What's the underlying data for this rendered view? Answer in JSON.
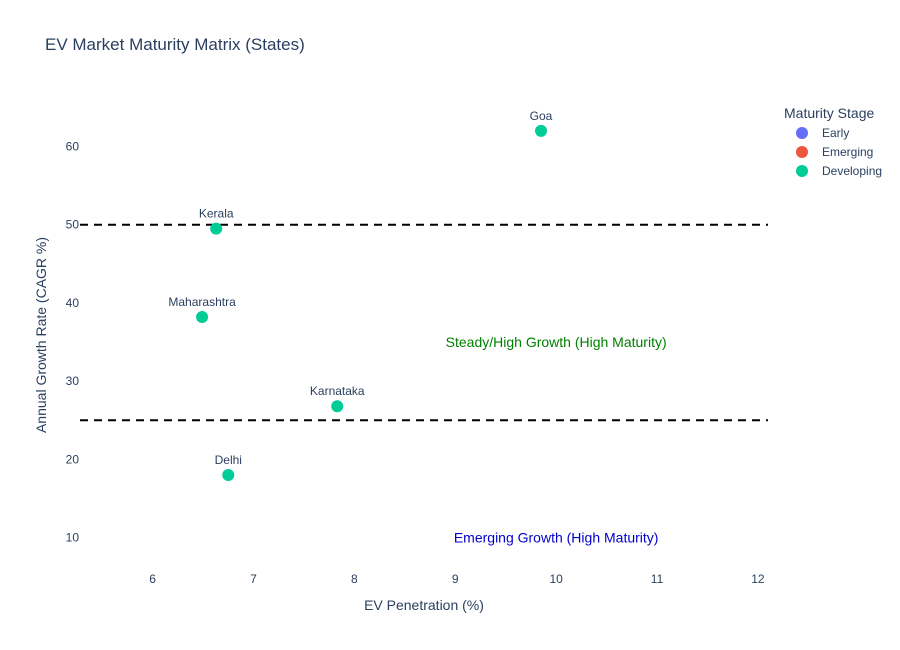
{
  "chart_data": {
    "type": "scatter",
    "title": "EV Market Maturity Matrix (States)",
    "xlabel": "EV Penetration (%)",
    "ylabel": "Annual Growth Rate (CAGR %)",
    "xlim": [
      5.28,
      12.1
    ],
    "ylim": [
      6.5,
      68.5
    ],
    "xticks": [
      "6",
      "7",
      "8",
      "9",
      "10",
      "11",
      "12"
    ],
    "yticks": [
      "10",
      "20",
      "30",
      "40",
      "50",
      "60"
    ],
    "grid": false,
    "legend": {
      "title": "Maturity Stage",
      "placement": "top-right",
      "entries": [
        {
          "label": "Early",
          "color": "#636efa"
        },
        {
          "label": "Emerging",
          "color": "#ef553b"
        },
        {
          "label": "Developing",
          "color": "#00cc96"
        }
      ]
    },
    "series": [
      {
        "name": "Developing",
        "color": "#00cc96",
        "points": [
          {
            "label": "Goa",
            "x": 9.85,
            "y": 62.0
          },
          {
            "label": "Kerala",
            "x": 6.63,
            "y": 49.5
          },
          {
            "label": "Maharashtra",
            "x": 6.49,
            "y": 38.2
          },
          {
            "label": "Karnataka",
            "x": 7.83,
            "y": 26.8
          },
          {
            "label": "Delhi",
            "x": 6.75,
            "y": 18.0
          }
        ]
      }
    ],
    "reference_lines": [
      {
        "axis": "y",
        "value": 50,
        "style": "dashed",
        "color": "#000000"
      },
      {
        "axis": "y",
        "value": 25,
        "style": "dashed",
        "color": "#000000"
      }
    ],
    "annotations": [
      {
        "text": "Steady/High Growth (High Maturity)",
        "x": 10.0,
        "y": 35.0,
        "color": "#008000"
      },
      {
        "text": "Emerging Growth (High Maturity)",
        "x": 10.0,
        "y": 10.0,
        "color": "#0000cd"
      }
    ]
  }
}
